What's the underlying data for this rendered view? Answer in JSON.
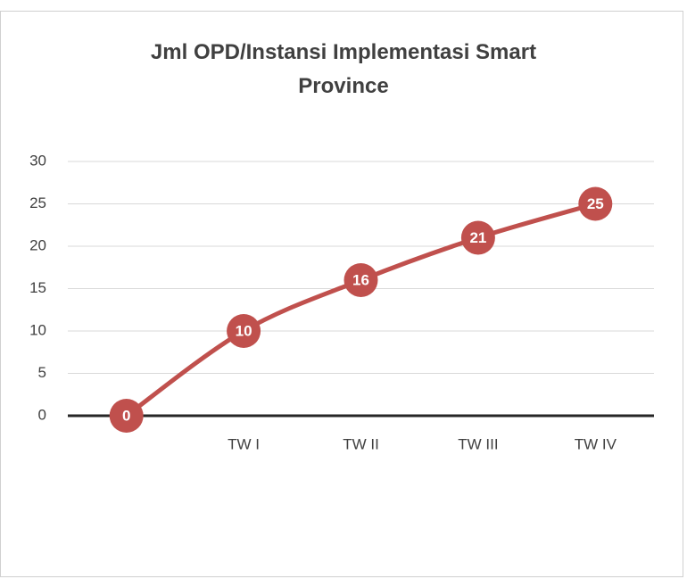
{
  "chart_data": {
    "type": "line",
    "title": "Jml OPD/Instansi Implementasi Smart Province",
    "categories": [
      null,
      "TW I",
      "TW II",
      "TW III",
      "TW IV"
    ],
    "series": [
      {
        "name": "Jml OPD/Instansi Implementasi Smart Province",
        "color": "#c0504d",
        "values": [
          0,
          10,
          16,
          21,
          25
        ]
      }
    ],
    "ylim": [
      0,
      30
    ],
    "yticks": [
      0,
      5,
      10,
      15,
      20,
      25,
      30
    ],
    "grid": true
  }
}
